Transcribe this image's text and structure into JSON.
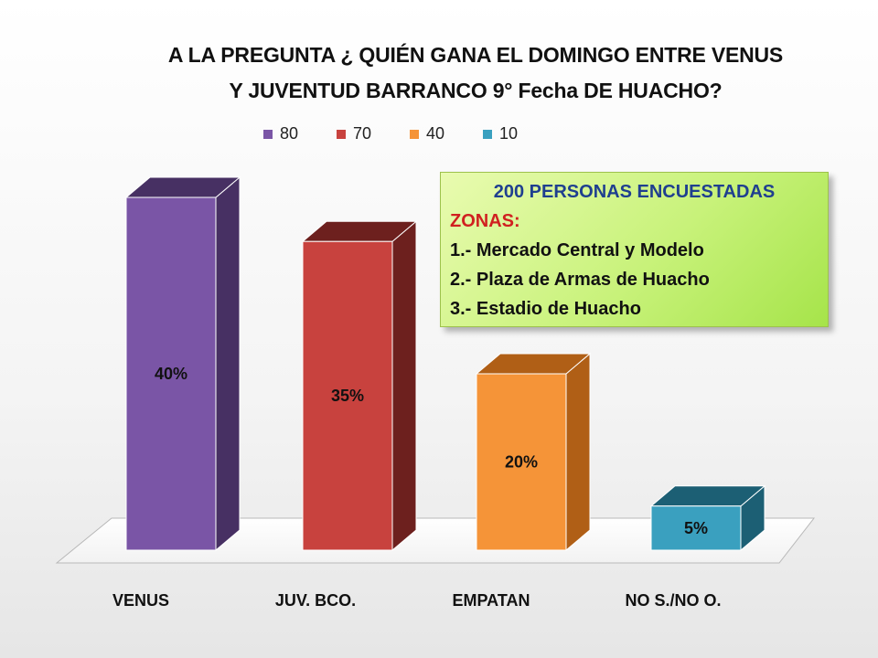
{
  "title_lines": [
    "A LA PREGUNTA ¿ QUIÉN GANA EL DOMINGO ENTRE VENUS",
    "Y JUVENTUD BARRANCO  9° Fecha DE HUACHO?"
  ],
  "info_box": {
    "heading": "200 PERSONAS ENCUESTADAS",
    "zonas_label": "ZONAS:",
    "zones": [
      "1.- Mercado Central y Modelo",
      "2.- Plaza de Armas de Huacho",
      "3.- Estadio de Huacho"
    ]
  },
  "chart_data": {
    "type": "bar",
    "style": "3d-column",
    "categories": [
      "VENUS",
      "JUV. BCO.",
      "EMPATAN",
      "NO S./NO O."
    ],
    "values": [
      80,
      70,
      40,
      10
    ],
    "data_labels": [
      "40%",
      "35%",
      "20%",
      "5%"
    ],
    "ylim": [
      0,
      80
    ],
    "grid": false,
    "legend": {
      "position": "top",
      "entries": [
        "80",
        "70",
        "40",
        "10"
      ]
    },
    "colors": [
      "#7a55a6",
      "#c8423e",
      "#f59438",
      "#3aa0bf"
    ],
    "dark_colors": [
      "#473063",
      "#6d201e",
      "#b05f16",
      "#1c5f74"
    ]
  }
}
